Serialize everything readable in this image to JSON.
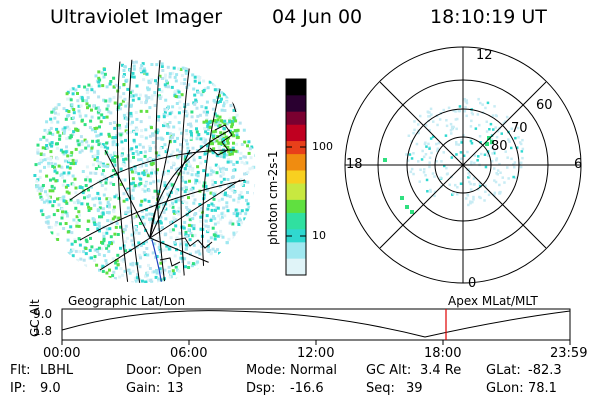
{
  "header": {
    "instrument": "Ultraviolet Imager",
    "date": "04 Jun 00",
    "time": "18:10:19 UT"
  },
  "colorbar": {
    "unit_label": "photon cm-2s-1",
    "ticks": [
      "100",
      "10"
    ],
    "colors": [
      "#000000",
      "#2a0030",
      "#7a0030",
      "#c00020",
      "#e8401a",
      "#f08c10",
      "#f8d020",
      "#c8e840",
      "#60e040",
      "#30e0a0",
      "#30d8d0",
      "#a0e8f0",
      "#e0f4f8"
    ]
  },
  "polar_plot": {
    "mlt_labels": [
      "12",
      "18",
      "6",
      "0"
    ],
    "lat_labels": [
      "60",
      "70",
      "80"
    ]
  },
  "altitude_plot": {
    "axis_title": "GC Alt",
    "y_ticks": [
      "9.0",
      "1.8"
    ],
    "left_caption": "Geographic Lat/Lon",
    "right_caption": "Apex MLat/MLT",
    "x_ticks": [
      "00:00",
      "06:00",
      "12:00",
      "18:00",
      "23:59"
    ],
    "marker_color": "#e00000"
  },
  "info_rows": [
    [
      {
        "label": "Flt:",
        "value": "LBHL"
      },
      {
        "label": "Door:",
        "value": "Open"
      },
      {
        "label": "Mode:",
        "value": "Normal"
      },
      {
        "label": "GC Alt:",
        "value": "3.4 Re"
      },
      {
        "label": "GLat:",
        "value": "-82.3"
      }
    ],
    [
      {
        "label": "IP:",
        "value": "9.0"
      },
      {
        "label": "Gain:",
        "value": "13"
      },
      {
        "label": "Dsp:",
        "value": "-16.6"
      },
      {
        "label": "Seq:",
        "value": "39"
      },
      {
        "label": "GLon:",
        "value": "78.1"
      }
    ]
  ]
}
